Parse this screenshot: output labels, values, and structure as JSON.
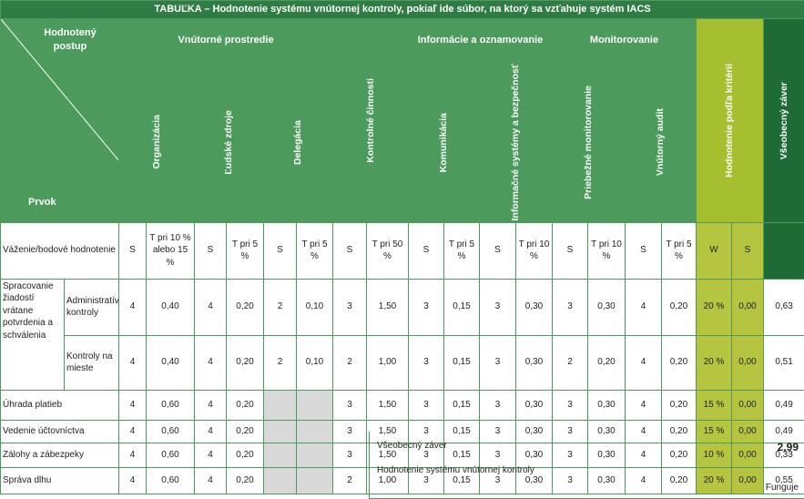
{
  "title": "TABUĽKA – Hodnotenie systému vnútornej kontroly, pokiaľ ide súbor, na ktorý sa vzťahuje systém IACS",
  "header": {
    "corner_top": "Hodnotený postup",
    "corner_bottom": "Prvok",
    "groups": [
      {
        "label": "Vnútorné prostredie",
        "columns": [
          "Organizácia",
          "Ľudské zdroje",
          "Delegácia"
        ]
      },
      {
        "label": "Kontrolné činnosti"
      },
      {
        "label": "Informácie a oznamovanie",
        "columns": [
          "Komunikácia",
          "Informačné systémy a bezpečnosť"
        ]
      },
      {
        "label": "Monitorovanie",
        "columns": [
          "Priebežné monitorovanie",
          "Vnútorný audit"
        ]
      },
      {
        "label": "Hodnotenie podľa kritérií"
      },
      {
        "label": "Všeobecný záver"
      }
    ]
  },
  "weights": {
    "label": "Váženie/bodové hodnotenie",
    "cells": [
      "S",
      "T pri 10 % alebo 15 %",
      "S",
      "T pri 5 %",
      "S",
      "T pri 5 %",
      "S",
      "T pri 50 %",
      "S",
      "T pri 5 %",
      "S",
      "T pri 10 %",
      "S",
      "T pri 10 %",
      "S",
      "T pri 5 %",
      "W",
      "S"
    ]
  },
  "rows": [
    {
      "label": "Spracovanie žiadostí vrátane potvrdenia a schválenia",
      "sub": "Administratívne kontroly",
      "cells": [
        "4",
        "0,40",
        "4",
        "0,20",
        "2",
        "0,10",
        "3",
        "1,50",
        "3",
        "0,15",
        "3",
        "0,30",
        "3",
        "0,30",
        "4",
        "0,20",
        "20 %",
        "0,00",
        "0,63"
      ]
    },
    {
      "sub": "Kontroly na mieste",
      "cells": [
        "4",
        "0,40",
        "4",
        "0,20",
        "2",
        "0,10",
        "2",
        "1,00",
        "3",
        "0,15",
        "3",
        "0,30",
        "2",
        "0,20",
        "4",
        "0,20",
        "20 %",
        "0,00",
        "0,51"
      ]
    },
    {
      "label": "Úhrada platieb",
      "cells": [
        "4",
        "0,60",
        "4",
        "0,20",
        null,
        null,
        "3",
        "1,50",
        "3",
        "0,15",
        "3",
        "0,30",
        "3",
        "0,30",
        "4",
        "0,20",
        "15 %",
        "0,00",
        "0,49"
      ]
    },
    {
      "label": "Vedenie účtovníctva",
      "cells": [
        "4",
        "0,60",
        "4",
        "0,20",
        null,
        null,
        "3",
        "1,50",
        "3",
        "0,15",
        "3",
        "0,30",
        "3",
        "0,30",
        "4",
        "0,20",
        "15 %",
        "0,00",
        "0,49"
      ]
    },
    {
      "label": "Zálohy a zábezpeky",
      "cells": [
        "4",
        "0,60",
        "4",
        "0,20",
        null,
        null,
        "3",
        "1,50",
        "3",
        "0,15",
        "3",
        "0,30",
        "3",
        "0,30",
        "4",
        "0,20",
        "10 %",
        "0,00",
        "0,33"
      ]
    },
    {
      "label": "Správa dlhu",
      "cells": [
        "4",
        "0,60",
        "4",
        "0,20",
        null,
        null,
        "2",
        "1,00",
        "3",
        "0,15",
        "3",
        "0,30",
        "3",
        "0,30",
        "4",
        "0,20",
        "20 %",
        "0,00",
        "0,55"
      ]
    }
  ],
  "summary": {
    "label": "Všeobecný záver",
    "value": "2,99",
    "assessment_label": "Hodnotenie systému vnútornej kontroly",
    "assessment": "Funguje"
  }
}
